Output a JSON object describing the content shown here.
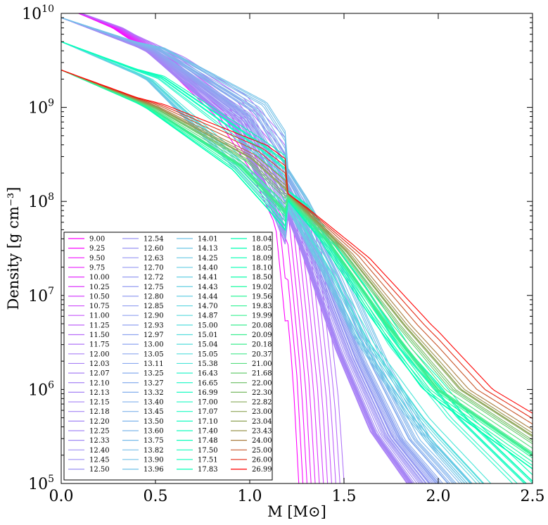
{
  "chart_data": {
    "type": "line",
    "xlabel": "M [M⊙]",
    "ylabel": "Density [g cm⁻³]",
    "xlim": [
      0.0,
      2.5
    ],
    "ylim": [
      100000,
      10000000000
    ],
    "yscale": "log",
    "x_ticks": [
      "0.0",
      "0.5",
      "1.0",
      "1.5",
      "2.0",
      "2.5"
    ],
    "y_ticks": [
      {
        "base": "10",
        "exp": "5"
      },
      {
        "base": "10",
        "exp": "6"
      },
      {
        "base": "10",
        "exp": "7"
      },
      {
        "base": "10",
        "exp": "8"
      },
      {
        "base": "10",
        "exp": "9"
      },
      {
        "base": "10",
        "exp": "10"
      }
    ],
    "legend_position": "lower-left",
    "legend_columns": 4,
    "colormap": "rainbow (violet → red with increasing mass label)",
    "series_names": [
      "9.00",
      "9.25",
      "9.50",
      "9.75",
      "10.00",
      "10.25",
      "10.50",
      "10.75",
      "11.00",
      "11.25",
      "11.50",
      "11.75",
      "12.00",
      "12.03",
      "12.07",
      "12.10",
      "12.13",
      "12.15",
      "12.18",
      "12.20",
      "12.25",
      "12.33",
      "12.40",
      "12.45",
      "12.50",
      "12.54",
      "12.60",
      "12.63",
      "12.70",
      "12.72",
      "12.75",
      "12.80",
      "12.85",
      "12.90",
      "12.93",
      "12.97",
      "13.00",
      "13.05",
      "13.11",
      "13.25",
      "13.27",
      "13.32",
      "13.40",
      "13.45",
      "13.50",
      "13.60",
      "13.75",
      "13.82",
      "13.90",
      "13.96",
      "14.01",
      "14.13",
      "14.25",
      "14.40",
      "14.41",
      "14.43",
      "14.44",
      "14.70",
      "14.87",
      "15.00",
      "15.01",
      "15.04",
      "15.05",
      "15.38",
      "16.43",
      "16.65",
      "16.99",
      "17.00",
      "17.07",
      "17.10",
      "17.40",
      "17.48",
      "17.50",
      "17.51",
      "17.83",
      "18.04",
      "18.05",
      "18.09",
      "18.10",
      "18.50",
      "19.02",
      "19.56",
      "19.83",
      "19.99",
      "20.08",
      "20.09",
      "20.18",
      "20.37",
      "21.00",
      "21.68",
      "22.00",
      "22.30",
      "22.82",
      "23.00",
      "23.04",
      "23.43",
      "24.00",
      "25.00",
      "26.00",
      "26.99"
    ],
    "approx_profile_groups": [
      {
        "mass_range": [
          9.0,
          11.75
        ],
        "x": [
          0.0,
          0.3,
          0.6,
          0.9,
          1.1,
          1.25,
          1.3,
          1.35,
          1.38
        ],
        "y": [
          12000000000.0,
          7000000000.0,
          3000000000.0,
          1000000000.0,
          300000000.0,
          80000000.0,
          10000000.0,
          1000000.0,
          100000.0
        ]
      },
      {
        "mass_range": [
          12.0,
          13.96
        ],
        "x": [
          0.0,
          0.5,
          1.0,
          1.2,
          1.4,
          1.6,
          1.8,
          2.0
        ],
        "y": [
          9000000000.0,
          4000000000.0,
          800000000.0,
          150000000.0,
          20000000.0,
          2000000.0,
          300000.0,
          100000.0
        ]
      },
      {
        "mass_range": [
          14.01,
          17.83
        ],
        "x": [
          0.0,
          0.5,
          1.0,
          1.2,
          1.5,
          1.7,
          2.0,
          2.3
        ],
        "y": [
          5000000000.0,
          2000000000.0,
          300000000.0,
          130000000.0,
          15000000.0,
          3000000.0,
          500000.0,
          120000.0
        ]
      },
      {
        "mass_range": [
          18.04,
          26.99
        ],
        "x": [
          0.0,
          0.5,
          1.0,
          1.2,
          1.5,
          1.8,
          2.1,
          2.5
        ],
        "y": [
          2500000000.0,
          1000000000.0,
          280000000.0,
          120000000.0,
          30000000.0,
          5000000.0,
          1000000.0,
          300000.0
        ]
      }
    ]
  }
}
